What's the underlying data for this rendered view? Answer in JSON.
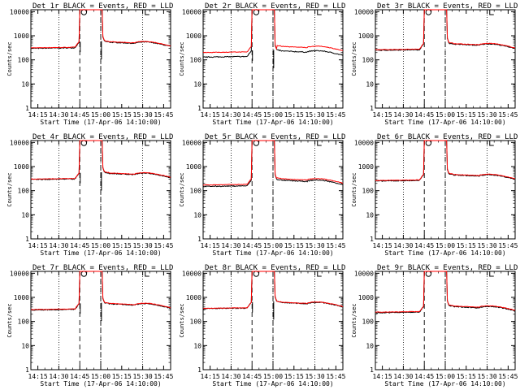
{
  "chart_data": {
    "type": "line",
    "layout": "3x3 grid",
    "shared": {
      "xlabel": "Start Time (17-Apr-06 14:10:00)",
      "ylabel": "Counts/sec",
      "x_ticks": [
        "14:15",
        "14:30",
        "14:45",
        "15:00",
        "15:15",
        "15:30",
        "15:45"
      ],
      "x_tick_minutes": [
        5,
        20,
        35,
        50,
        65,
        80,
        95
      ],
      "xlim_minutes": [
        0,
        100
      ],
      "y_scale": "log",
      "ylim": [
        1,
        12000
      ],
      "y_ticks": [
        "1",
        "10",
        "100",
        "1000",
        "10000"
      ],
      "y_tick_values": [
        1,
        10,
        100,
        1000,
        10000
      ],
      "dotted_lines_minutes": [
        20,
        50,
        80
      ],
      "dashed_lines_minutes": [
        35,
        50
      ],
      "markers": [
        {
          "symbol": "O",
          "minute": 38
        },
        {
          "symbol": "C",
          "minute": 83
        }
      ],
      "colors": {
        "events": "#000000",
        "lld": "#ff0000"
      }
    },
    "panels": [
      {
        "title": "Det 1r BLACK = Events, RED = LLD",
        "base": 300,
        "lld_ratio": 1.05,
        "spike": true
      },
      {
        "title": "Det 2r BLACK = Events, RED = LLD",
        "base": 130,
        "lld_ratio": 1.55,
        "spike": true
      },
      {
        "title": "Det 3r BLACK = Events, RED = LLD",
        "base": 250,
        "lld_ratio": 1.05,
        "spike": false
      },
      {
        "title": "Det 4r BLACK = Events, RED = LLD",
        "base": 290,
        "lld_ratio": 1.04,
        "spike": true
      },
      {
        "title": "Det 5r BLACK = Events, RED = LLD",
        "base": 150,
        "lld_ratio": 1.15,
        "spike": false
      },
      {
        "title": "Det 6r BLACK = Events, RED = LLD",
        "base": 250,
        "lld_ratio": 1.05,
        "spike": false
      },
      {
        "title": "Det 7r BLACK = Events, RED = LLD",
        "base": 300,
        "lld_ratio": 1.04,
        "spike": true
      },
      {
        "title": "Det 8r BLACK = Events, RED = LLD",
        "base": 340,
        "lld_ratio": 1.03,
        "spike": true
      },
      {
        "title": "Det 9r BLACK = Events, RED = LLD",
        "base": 230,
        "lld_ratio": 1.06,
        "spike": false
      }
    ]
  }
}
